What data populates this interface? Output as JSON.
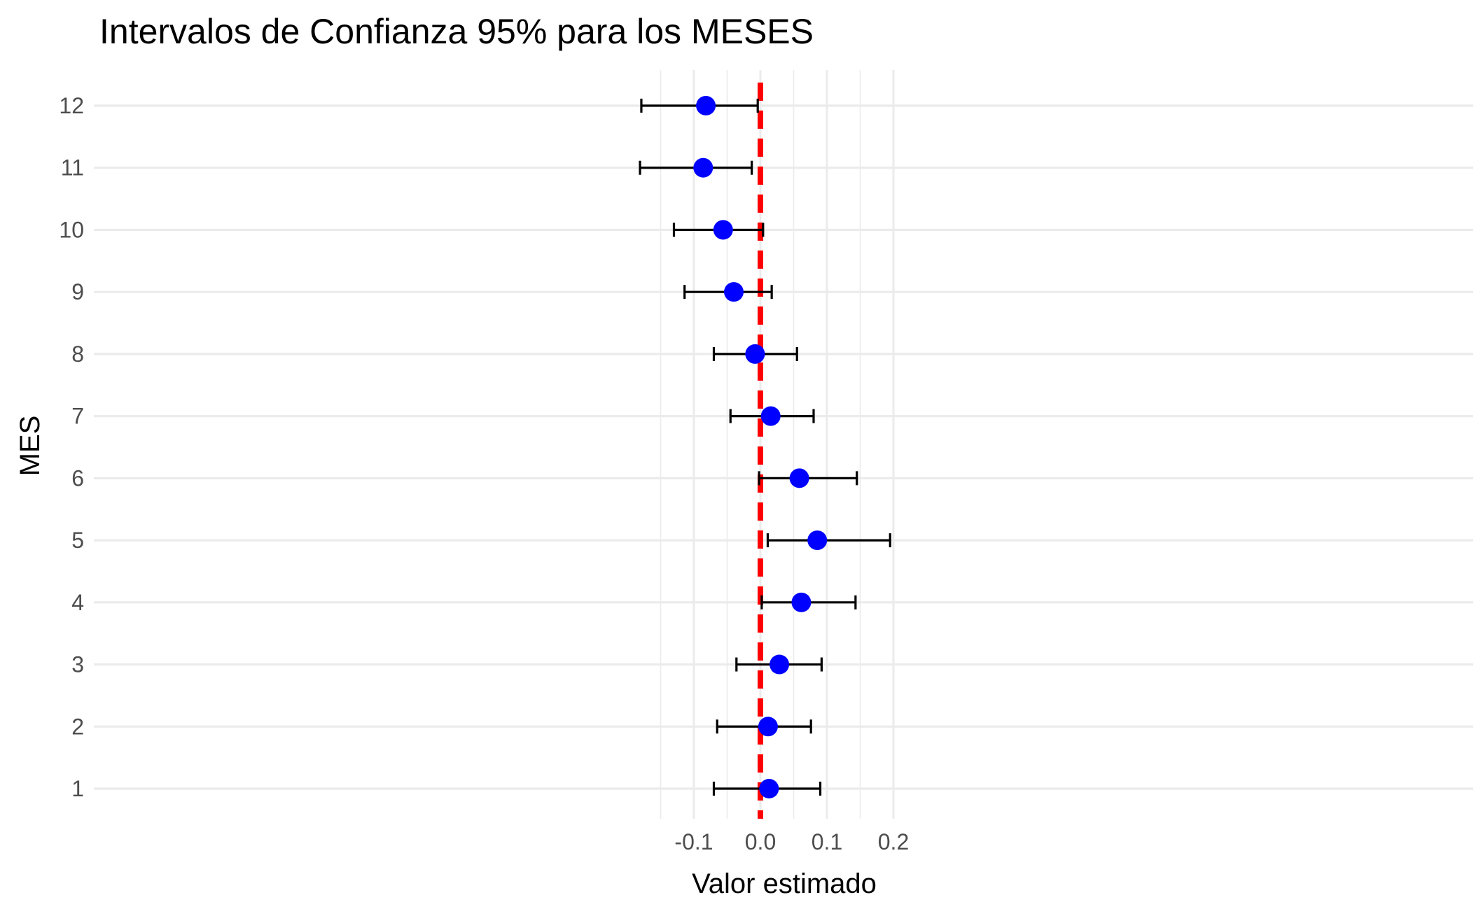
{
  "chart_data": {
    "type": "scatter",
    "title": "Intervalos de Confianza 95% para los MESES",
    "xlabel": "Valor estimado",
    "ylabel": "MES",
    "xlim": [
      -0.2,
      0.21
    ],
    "x_ticks": [
      -0.1,
      0.0,
      0.1,
      0.2
    ],
    "x_tick_labels": [
      "-0.1",
      "0.0",
      "0.1",
      "0.2"
    ],
    "x_minor_ticks": [
      -0.15,
      -0.05,
      0.05,
      0.15
    ],
    "categories": [
      "1",
      "2",
      "3",
      "4",
      "5",
      "6",
      "7",
      "8",
      "9",
      "10",
      "11",
      "12"
    ],
    "grid": true,
    "legend": "none",
    "reference_line": {
      "x": 0.0,
      "style": "dashed",
      "color": "#ff0000"
    },
    "point_color": "#0000ff",
    "errorbar_color": "#000000",
    "series": [
      {
        "points": [
          {
            "mes": "1",
            "estimate": 0.013,
            "lower": -0.07,
            "upper": 0.09
          },
          {
            "mes": "2",
            "estimate": 0.0115,
            "lower": -0.065,
            "upper": 0.076
          },
          {
            "mes": "3",
            "estimate": 0.0285,
            "lower": -0.036,
            "upper": 0.092
          },
          {
            "mes": "4",
            "estimate": 0.0615,
            "lower": 0.002,
            "upper": 0.143
          },
          {
            "mes": "5",
            "estimate": 0.0855,
            "lower": 0.011,
            "upper": 0.195
          },
          {
            "mes": "6",
            "estimate": 0.0585,
            "lower": -0.002,
            "upper": 0.145
          },
          {
            "mes": "7",
            "estimate": 0.0155,
            "lower": -0.045,
            "upper": 0.08
          },
          {
            "mes": "8",
            "estimate": -0.008,
            "lower": -0.07,
            "upper": 0.055
          },
          {
            "mes": "9",
            "estimate": -0.04,
            "lower": -0.114,
            "upper": 0.017
          },
          {
            "mes": "10",
            "estimate": -0.056,
            "lower": -0.13,
            "upper": 0.004
          },
          {
            "mes": "11",
            "estimate": -0.086,
            "lower": -0.181,
            "upper": -0.013
          },
          {
            "mes": "12",
            "estimate": -0.082,
            "lower": -0.179,
            "upper": -0.004
          }
        ]
      }
    ]
  }
}
